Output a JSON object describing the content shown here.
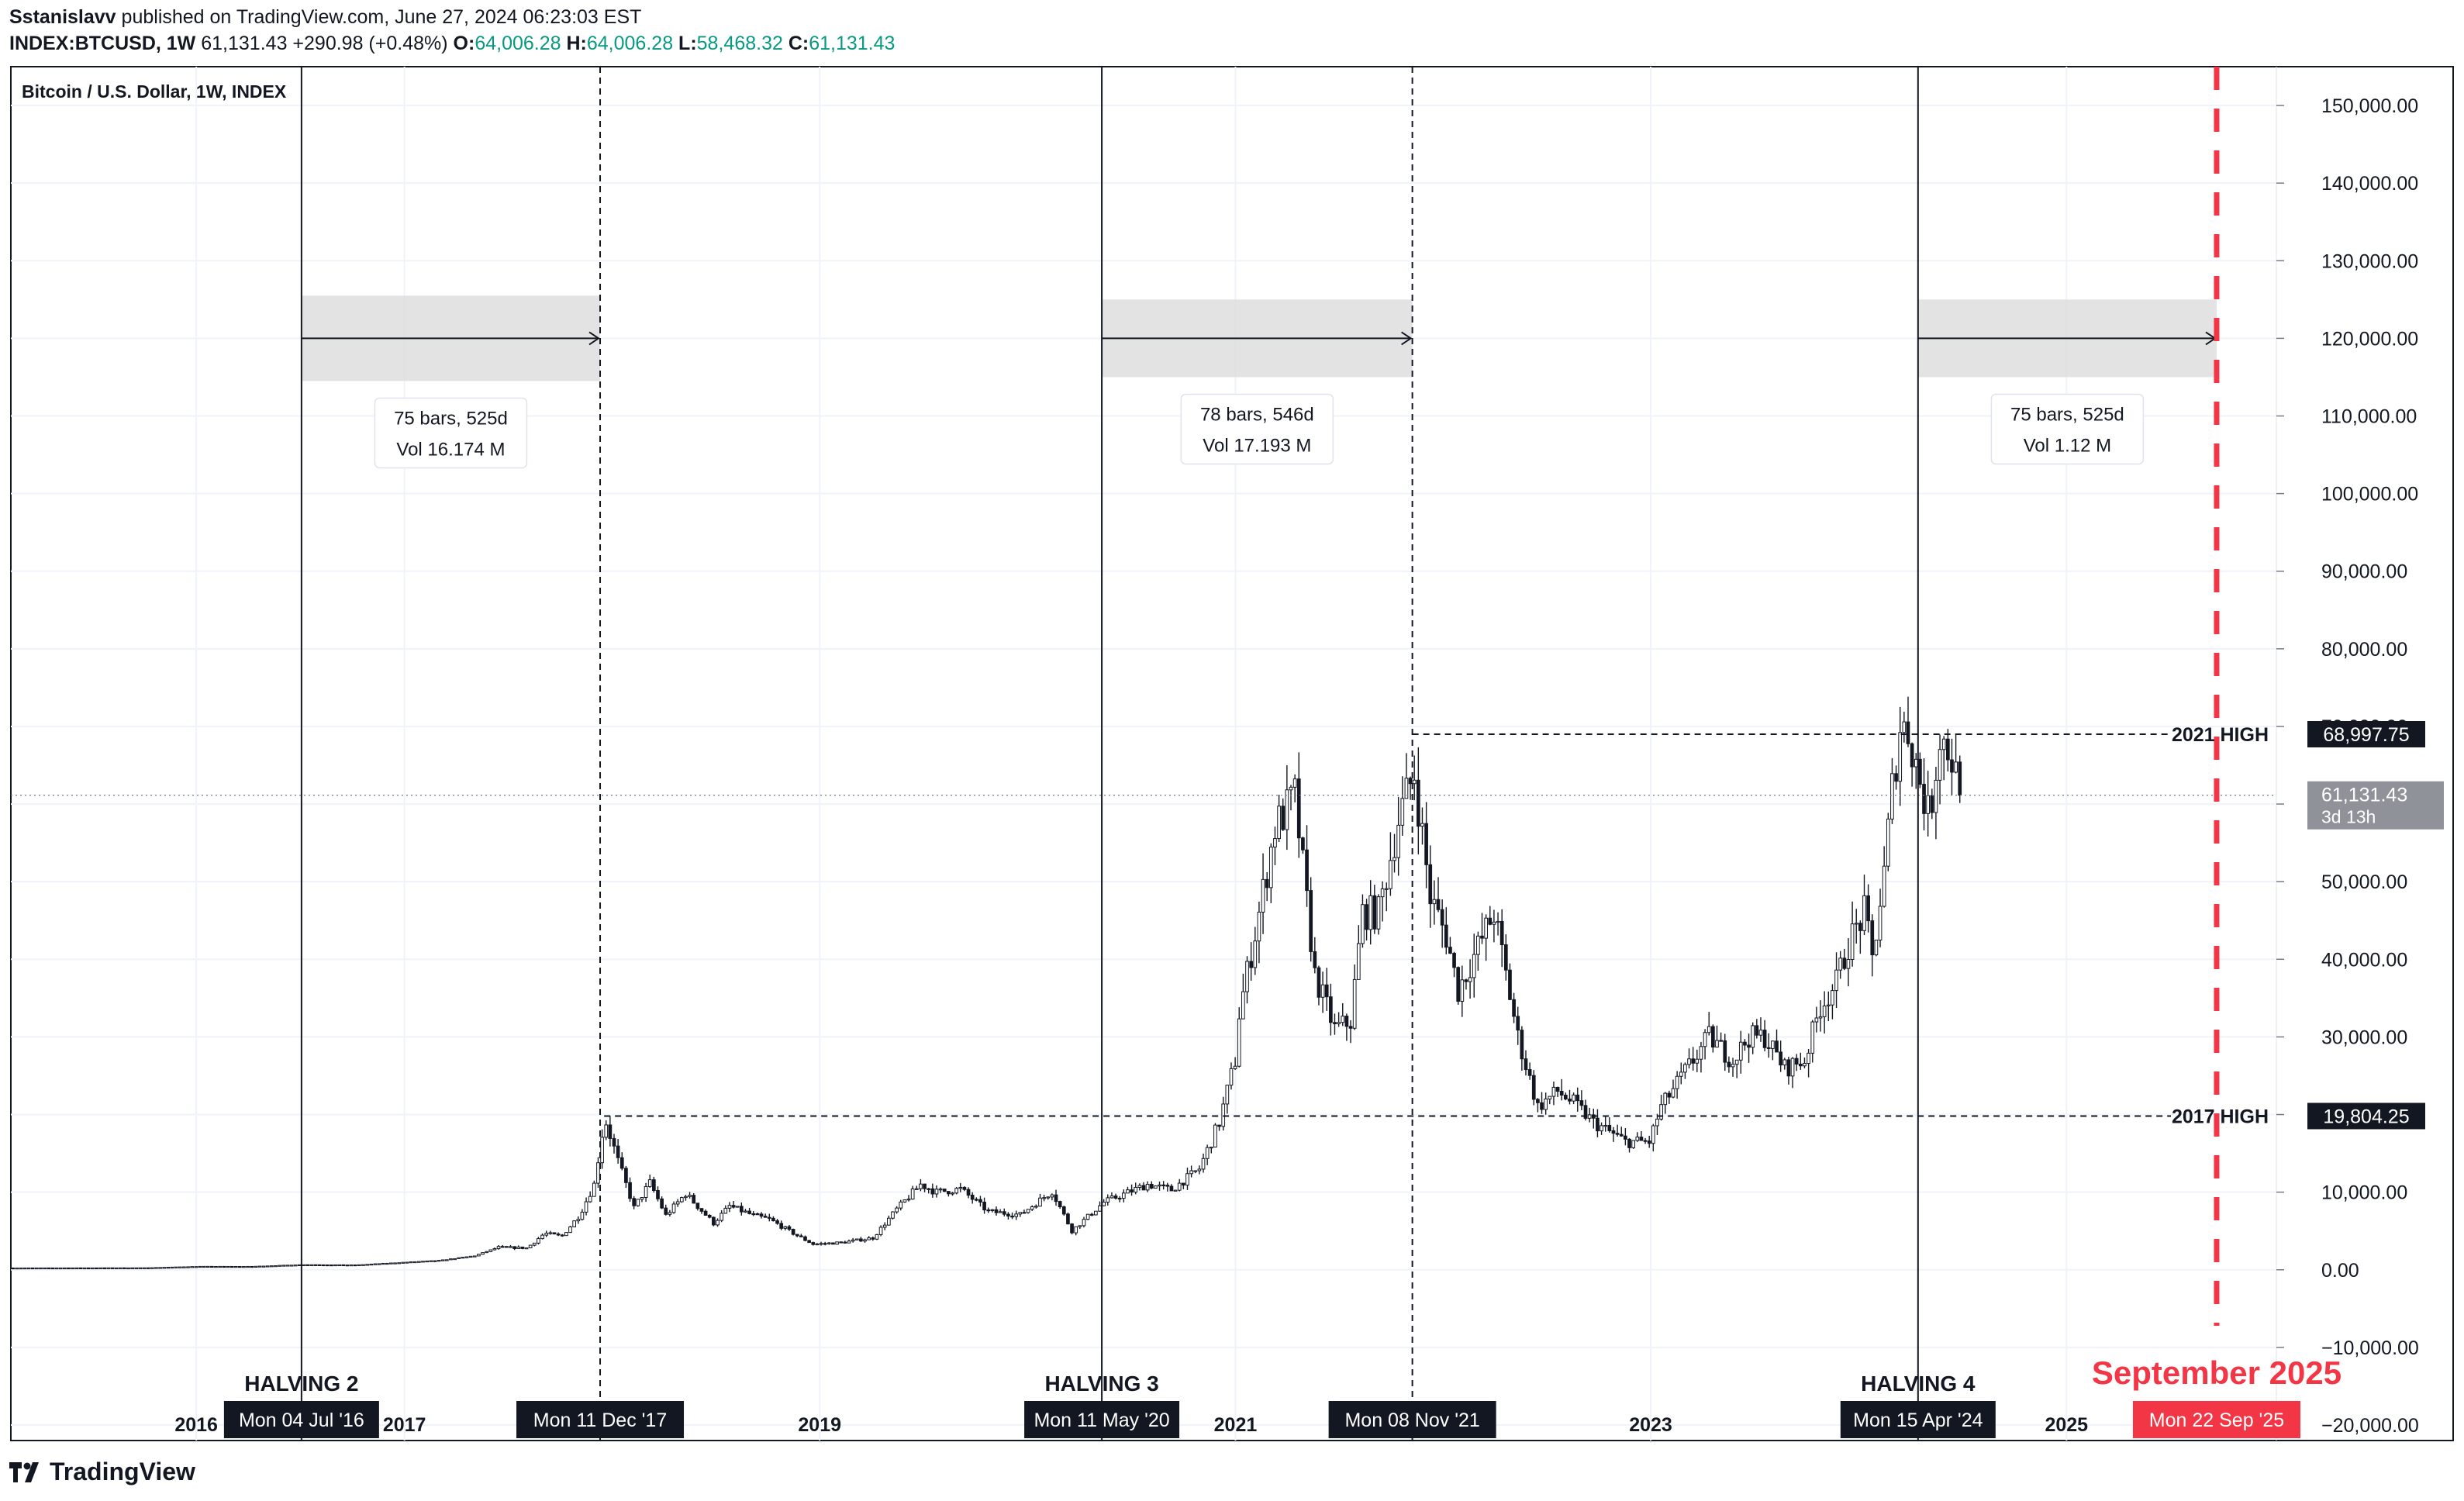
{
  "header": {
    "author": "Sstanislavv",
    "published_text": "published on TradingView.com, June 27, 2024 06:23:03 EST",
    "symbol": "INDEX:BTCUSD, 1W",
    "last": "61,131.43",
    "change": "+290.98 (+0.48%)",
    "o_label": "O:",
    "o_value": "64,006.28",
    "h_label": "H:",
    "h_value": "64,006.28",
    "l_label": "L:",
    "l_value": "58,468.32",
    "c_label": "C:",
    "c_value": "61,131.43"
  },
  "brand": "TradingView",
  "colors": {
    "candle": "#131722",
    "grid": "#f0f3fa",
    "accent_red": "#f23645",
    "label_black": "#131722",
    "price_tag_gray": "#8f9399",
    "range_box": "#d9d9d9"
  },
  "chart_data": {
    "type": "candlestick",
    "title": "Bitcoin / U.S. Dollar, 1W, INDEX",
    "y_ticks": [
      "150,000.00",
      "140,000.00",
      "130,000.00",
      "120,000.00",
      "110,000.00",
      "100,000.00",
      "90,000.00",
      "80,000.00",
      "70,000.00",
      "60,000.00",
      "50,000.00",
      "40,000.00",
      "30,000.00",
      "20,000.00",
      "10,000.00",
      "0.00",
      "−10,000.00",
      "−20,000.00"
    ],
    "y_tick_values": [
      150000,
      140000,
      130000,
      120000,
      110000,
      100000,
      90000,
      80000,
      70000,
      60000,
      50000,
      40000,
      30000,
      20000,
      10000,
      0,
      -10000,
      -20000
    ],
    "ylim": [
      -22000,
      155000
    ],
    "x_ticks": [
      {
        "label": "2016",
        "date": "2016-01-01"
      },
      {
        "label": "2017",
        "date": "2017-01-01"
      },
      {
        "label": "2019",
        "date": "2019-01-01"
      },
      {
        "label": "2021",
        "date": "2021-01-01"
      },
      {
        "label": "2023",
        "date": "2023-01-01"
      },
      {
        "label": "2025",
        "date": "2025-01-01"
      }
    ],
    "xlim": [
      "2015-02-09",
      "2026-01-05"
    ],
    "price_points": [
      [
        "2015-02-09",
        230
      ],
      [
        "2015-06-01",
        240
      ],
      [
        "2015-10-01",
        250
      ],
      [
        "2016-01-04",
        430
      ],
      [
        "2016-04-01",
        420
      ],
      [
        "2016-07-04",
        660
      ],
      [
        "2016-10-03",
        610
      ],
      [
        "2017-01-02",
        980
      ],
      [
        "2017-03-01",
        1200
      ],
      [
        "2017-05-01",
        1800
      ],
      [
        "2017-06-12",
        2900
      ],
      [
        "2017-08-01",
        2800
      ],
      [
        "2017-09-01",
        4700
      ],
      [
        "2017-10-01",
        4300
      ],
      [
        "2017-11-01",
        7000
      ],
      [
        "2017-11-27",
        11000
      ],
      [
        "2017-12-11",
        17500
      ],
      [
        "2017-12-18",
        19000
      ],
      [
        "2018-01-08",
        14000
      ],
      [
        "2018-02-05",
        8000
      ],
      [
        "2018-03-05",
        11200
      ],
      [
        "2018-04-02",
        7000
      ],
      [
        "2018-05-07",
        9800
      ],
      [
        "2018-06-25",
        6000
      ],
      [
        "2018-07-23",
        8200
      ],
      [
        "2018-09-03",
        7000
      ],
      [
        "2018-10-01",
        6500
      ],
      [
        "2018-11-19",
        4400
      ],
      [
        "2018-12-17",
        3300
      ],
      [
        "2019-02-04",
        3500
      ],
      [
        "2019-04-01",
        4100
      ],
      [
        "2019-05-13",
        7800
      ],
      [
        "2019-06-24",
        11000
      ],
      [
        "2019-07-22",
        10000
      ],
      [
        "2019-09-02",
        10400
      ],
      [
        "2019-10-21",
        7500
      ],
      [
        "2019-12-16",
        7100
      ],
      [
        "2020-02-10",
        10100
      ],
      [
        "2020-03-16",
        5000
      ],
      [
        "2020-05-11",
        8700
      ],
      [
        "2020-07-27",
        11000
      ],
      [
        "2020-09-07",
        10300
      ],
      [
        "2020-10-26",
        13000
      ],
      [
        "2020-11-30",
        19000
      ],
      [
        "2020-12-28",
        27000
      ],
      [
        "2021-01-04",
        33000
      ],
      [
        "2021-02-08",
        46000
      ],
      [
        "2021-03-08",
        57000
      ],
      [
        "2021-04-12",
        61000
      ],
      [
        "2021-05-17",
        38000
      ],
      [
        "2021-06-21",
        31000
      ],
      [
        "2021-07-19",
        32000
      ],
      [
        "2021-08-09",
        46000
      ],
      [
        "2021-09-06",
        46000
      ],
      [
        "2021-10-11",
        58000
      ],
      [
        "2021-11-08",
        64000
      ],
      [
        "2021-12-06",
        48000
      ],
      [
        "2022-01-03",
        43000
      ],
      [
        "2022-01-24",
        36000
      ],
      [
        "2022-03-28",
        46000
      ],
      [
        "2022-05-09",
        30000
      ],
      [
        "2022-06-13",
        21000
      ],
      [
        "2022-07-18",
        23000
      ],
      [
        "2022-08-15",
        21500
      ],
      [
        "2022-09-19",
        19000
      ],
      [
        "2022-11-14",
        16500
      ],
      [
        "2022-12-26",
        16500
      ],
      [
        "2023-01-16",
        21000
      ],
      [
        "2023-02-13",
        24000
      ],
      [
        "2023-03-13",
        27000
      ],
      [
        "2023-04-10",
        30000
      ],
      [
        "2023-05-22",
        27000
      ],
      [
        "2023-06-19",
        30000
      ],
      [
        "2023-07-17",
        30000
      ],
      [
        "2023-08-21",
        26000
      ],
      [
        "2023-09-25",
        27000
      ],
      [
        "2023-10-23",
        34000
      ],
      [
        "2023-11-20",
        37000
      ],
      [
        "2023-12-11",
        42000
      ],
      [
        "2024-01-08",
        46000
      ],
      [
        "2024-01-22",
        40000
      ],
      [
        "2024-02-12",
        51000
      ],
      [
        "2024-02-26",
        62000
      ],
      [
        "2024-03-11",
        70000
      ],
      [
        "2024-03-25",
        69500
      ],
      [
        "2024-04-15",
        63000
      ],
      [
        "2024-05-01",
        58000
      ],
      [
        "2024-05-20",
        69000
      ],
      [
        "2024-06-10",
        66000
      ],
      [
        "2024-06-24",
        61131
      ]
    ],
    "halvings": [
      {
        "label": "HALVING 2",
        "date": "2016-07-04",
        "date_label": "Mon 04 Jul '16"
      },
      {
        "label": "HALVING 3",
        "date": "2020-05-11",
        "date_label": "Mon 11 May '20"
      },
      {
        "label": "HALVING 4",
        "date": "2024-04-15",
        "date_label": "Mon 15 Apr '24"
      }
    ],
    "cycle_tops": [
      {
        "date": "2017-12-11",
        "date_label": "Mon 11 Dec '17"
      },
      {
        "date": "2021-11-08",
        "date_label": "Mon 08 Nov '21"
      }
    ],
    "projection": {
      "label": "September 2025",
      "date": "2025-09-22",
      "date_label": "Mon 22 Sep '25"
    },
    "ranges": [
      {
        "from": "2016-07-04",
        "to": "2017-12-11",
        "bars": "75 bars, 525d",
        "vol": "Vol 16.174 M",
        "y": 120000,
        "box_top": 125500,
        "box_bottom": 114500
      },
      {
        "from": "2020-05-11",
        "to": "2021-11-08",
        "bars": "78 bars, 546d",
        "vol": "Vol 17.193 M",
        "y": 120000,
        "box_top": 125000,
        "box_bottom": 115000
      },
      {
        "from": "2024-04-15",
        "to": "2025-09-22",
        "bars": "75 bars, 525d",
        "vol": "Vol 1.12 M",
        "y": 120000,
        "box_top": 125000,
        "box_bottom": 115000
      }
    ],
    "levels": [
      {
        "label": "2021 HIGH",
        "value": 68997.75,
        "tag": "68,997.75",
        "from": "2021-11-08"
      },
      {
        "label": "2017 HIGH",
        "value": 19804.25,
        "tag": "19,804.25",
        "from": "2017-12-18"
      }
    ],
    "last_price": {
      "value": 61131.43,
      "tag": "61,131.43",
      "countdown": "3d 13h"
    }
  }
}
